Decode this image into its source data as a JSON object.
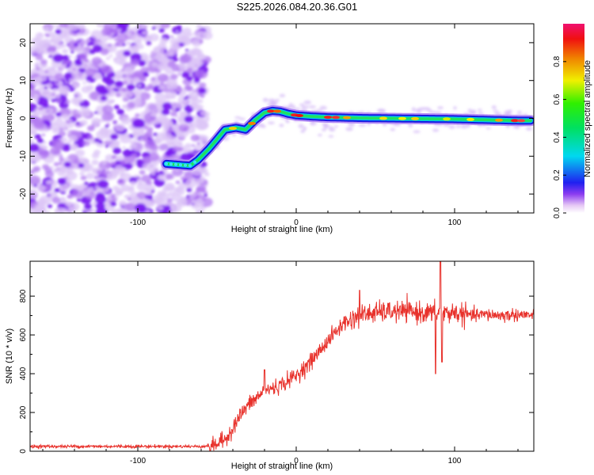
{
  "title": "S225.2026.084.20.36.G01",
  "chart_data": [
    {
      "type": "heatmap",
      "id": "spectrogram",
      "xlabel": "Height of straight line (km)",
      "ylabel": "Frequency (Hz)",
      "xlim": [
        -168,
        150
      ],
      "ylim": [
        -25,
        25
      ],
      "xticks": [
        -100,
        0,
        100
      ],
      "xtick_labels": [
        "-100",
        "0",
        "100"
      ],
      "yticks": [
        -20,
        -10,
        0,
        10,
        20
      ],
      "ytick_labels": [
        "-20",
        "-10",
        "0",
        "10",
        "20"
      ],
      "noise_region_x": [
        -168,
        -62
      ],
      "ridge": {
        "x": [
          -82,
          -67,
          -62,
          -55,
          -45,
          -38,
          -32,
          -26,
          -20,
          -15,
          -10,
          -5,
          0,
          10,
          20,
          30,
          40,
          60,
          80,
          100,
          120,
          140,
          148
        ],
        "y": [
          -12,
          -12.5,
          -11,
          -8,
          -3,
          -2.5,
          -3,
          -0.5,
          1.5,
          2,
          1.8,
          1.2,
          0.8,
          0.5,
          0.3,
          0.2,
          0.1,
          0,
          -0.1,
          -0.2,
          -0.4,
          -0.6,
          -0.6
        ]
      },
      "colorbar": {
        "label": "Normalized spectral amplitude",
        "range": [
          0,
          1
        ],
        "ticks": [
          0,
          0.2,
          0.4,
          0.6,
          0.8
        ],
        "tick_labels": [
          "0.0",
          "0.2",
          "0.4",
          "0.6",
          "0.8"
        ]
      }
    },
    {
      "type": "line",
      "id": "snr",
      "xlabel": "Height of straight line (km)",
      "ylabel": "SNR (10 * v/v)",
      "xlim": [
        -168,
        150
      ],
      "ylim": [
        0,
        980
      ],
      "xticks": [
        -100,
        0,
        100
      ],
      "xtick_labels": [
        "-100",
        "0",
        "100"
      ],
      "yticks": [
        0,
        200,
        400,
        600,
        800
      ],
      "ytick_labels": [
        "0",
        "200",
        "400",
        "600",
        "800"
      ],
      "line_color": "#e8322c",
      "trend": {
        "x": [
          -168,
          -60,
          -52,
          -45,
          -40,
          -35,
          -30,
          -20,
          -10,
          0,
          10,
          20,
          30,
          40,
          50,
          60,
          70,
          80,
          90,
          100,
          110,
          120,
          130,
          140,
          150
        ],
        "y": [
          25,
          25,
          30,
          60,
          120,
          190,
          240,
          310,
          340,
          390,
          470,
          570,
          660,
          700,
          715,
          720,
          720,
          715,
          710,
          715,
          700,
          705,
          700,
          705,
          700
        ]
      },
      "spikes": [
        {
          "x": 88,
          "y": 400
        },
        {
          "x": 91,
          "y": 980
        },
        {
          "x": 92,
          "y": 460
        },
        {
          "x": -20,
          "y": 420
        },
        {
          "x": 40,
          "y": 830
        }
      ]
    }
  ]
}
